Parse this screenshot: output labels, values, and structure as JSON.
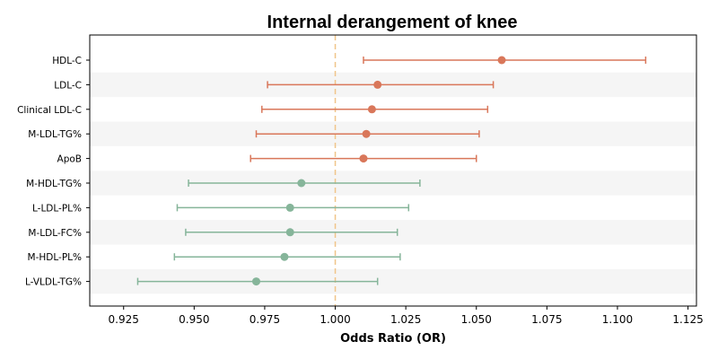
{
  "chart_data": {
    "type": "forest",
    "title": "Internal derangement of knee",
    "xlabel": "Odds Ratio (OR)",
    "xlim": [
      0.913,
      1.128
    ],
    "xticks": [
      "0.925",
      "0.950",
      "0.975",
      "1.000",
      "1.025",
      "1.050",
      "1.075",
      "1.100",
      "1.125"
    ],
    "reference_line": 1.0,
    "colors": {
      "risk": "#d9775a",
      "protective": "#86b59a",
      "reference": "#f0c58a",
      "stripe": "#f5f5f5"
    },
    "rows": [
      {
        "label": "HDL-C",
        "or": 1.059,
        "lo": 1.01,
        "hi": 1.11,
        "group": "risk"
      },
      {
        "label": "LDL-C",
        "or": 1.015,
        "lo": 0.976,
        "hi": 1.056,
        "group": "risk"
      },
      {
        "label": "Clinical LDL-C",
        "or": 1.013,
        "lo": 0.974,
        "hi": 1.054,
        "group": "risk"
      },
      {
        "label": "M-LDL-TG%",
        "or": 1.011,
        "lo": 0.972,
        "hi": 1.051,
        "group": "risk"
      },
      {
        "label": "ApoB",
        "or": 1.01,
        "lo": 0.97,
        "hi": 1.05,
        "group": "risk"
      },
      {
        "label": "M-HDL-TG%",
        "or": 0.988,
        "lo": 0.948,
        "hi": 1.03,
        "group": "protective"
      },
      {
        "label": "L-LDL-PL%",
        "or": 0.984,
        "lo": 0.944,
        "hi": 1.026,
        "group": "protective"
      },
      {
        "label": "M-LDL-FC%",
        "or": 0.984,
        "lo": 0.947,
        "hi": 1.022,
        "group": "protective"
      },
      {
        "label": "M-HDL-PL%",
        "or": 0.982,
        "lo": 0.943,
        "hi": 1.023,
        "group": "protective"
      },
      {
        "label": "L-VLDL-TG%",
        "or": 0.972,
        "lo": 0.93,
        "hi": 1.015,
        "group": "protective"
      }
    ]
  }
}
